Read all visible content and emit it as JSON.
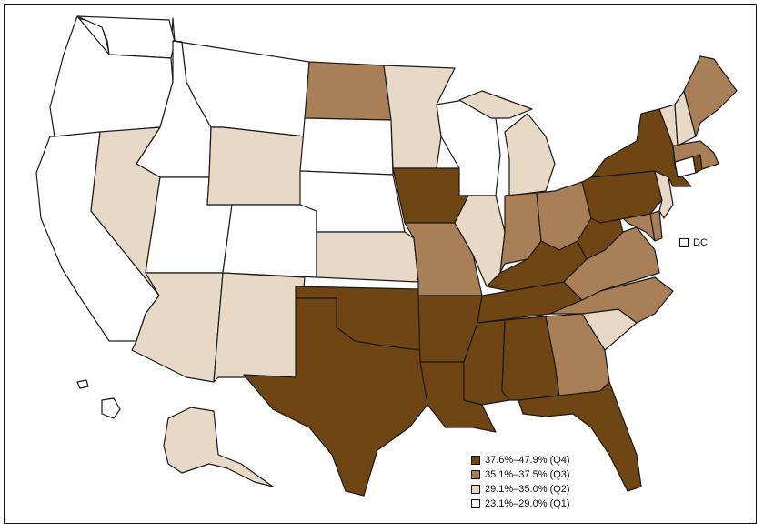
{
  "colors": {
    "q1": "#ffffff",
    "q2": "#e8d8c6",
    "q3": "#a97f58",
    "q4": "#6e4513",
    "outline": "#1a1a1a"
  },
  "legend": [
    {
      "label": "37.6%–47.9% (Q4)",
      "quartile": "q4"
    },
    {
      "label": "35.1%–37.5% (Q3)",
      "quartile": "q3"
    },
    {
      "label": "29.1%–35.0% (Q2)",
      "quartile": "q2"
    },
    {
      "label": "23.1%–29.0% (Q1)",
      "quartile": "q1"
    }
  ],
  "dc": {
    "label": "DC",
    "quartile": "q1"
  },
  "states": {
    "WA": "q1",
    "OR": "q1",
    "CA": "q1",
    "ID": "q1",
    "NV": "q2",
    "UT": "q1",
    "AZ": "q2",
    "MT": "q1",
    "WY": "q2",
    "CO": "q1",
    "NM": "q2",
    "ND": "q3",
    "SD": "q1",
    "NE": "q1",
    "KS": "q2",
    "OK": "q4",
    "TX": "q4",
    "MN": "q2",
    "IA": "q4",
    "MO": "q3",
    "AR": "q4",
    "LA": "q4",
    "WI": "q1",
    "IL": "q2",
    "MI": "q2",
    "IN": "q3",
    "OH": "q3",
    "KY": "q4",
    "TN": "q4",
    "MS": "q4",
    "AL": "q4",
    "GA": "q3",
    "FL": "q4",
    "SC": "q2",
    "NC": "q3",
    "VA": "q3",
    "WV": "q4",
    "MD": "q3",
    "DE": "q3",
    "PA": "q4",
    "NJ": "q2",
    "NY": "q4",
    "CT": "q1",
    "RI": "q4",
    "MA": "q3",
    "VT": "q2",
    "NH": "q2",
    "ME": "q3",
    "AK": "q2",
    "HI": "q1"
  }
}
